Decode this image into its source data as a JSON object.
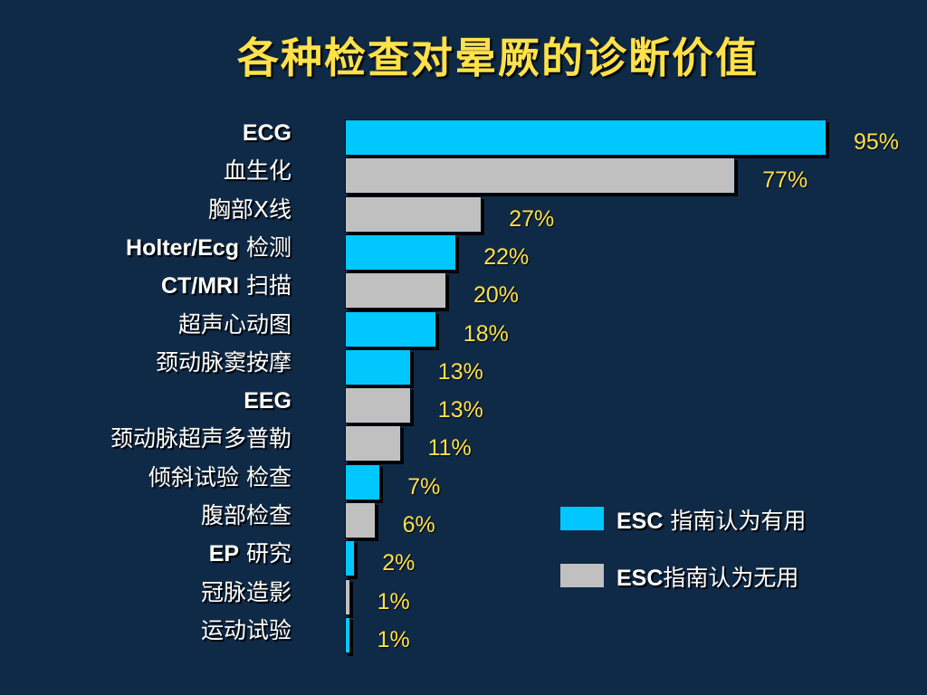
{
  "title": "各种检查对晕厥的诊断价值",
  "colors": {
    "useful": "#00c8ff",
    "not_useful": "#c0c0c0",
    "label": "#ffffff",
    "value": "#ffe14a",
    "background": "#0f2a47"
  },
  "legend": [
    {
      "key": "useful",
      "abbr": "ESC",
      "text": " 指南认为有用"
    },
    {
      "key": "not_useful",
      "abbr": "ESC",
      "text": "指南认为无用"
    }
  ],
  "chart_data": {
    "type": "bar",
    "orientation": "horizontal",
    "title": "各种检查对晕厥的诊断价值",
    "xlim": [
      0,
      100
    ],
    "categories": [
      {
        "bold": "ECG",
        "text": ""
      },
      {
        "bold": "",
        "text": "血生化"
      },
      {
        "bold": "",
        "text": "胸部X线"
      },
      {
        "bold": "Holter/Ecg",
        "text": " 检测"
      },
      {
        "bold": "CT/MRI",
        "text": " 扫描"
      },
      {
        "bold": "",
        "text": "超声心动图"
      },
      {
        "bold": "",
        "text": "颈动脉窦按摩"
      },
      {
        "bold": "EEG",
        "text": ""
      },
      {
        "bold": "",
        "text": "颈动脉超声多普勒"
      },
      {
        "bold": "",
        "text": "倾斜试验 检查"
      },
      {
        "bold": "",
        "text": "腹部检查"
      },
      {
        "bold": "EP",
        "text": " 研究"
      },
      {
        "bold": "",
        "text": "冠脉造影"
      },
      {
        "bold": "",
        "text": "运动试验"
      }
    ],
    "values": [
      95,
      77,
      27,
      22,
      20,
      18,
      13,
      13,
      11,
      7,
      6,
      2,
      1,
      1
    ],
    "value_labels": [
      "95%",
      "77%",
      "27%",
      "22%",
      "20%",
      "18%",
      "13%",
      "13%",
      "11%",
      "7%",
      "6%",
      "2%",
      "1%",
      "1%"
    ],
    "groups": [
      "useful",
      "not_useful",
      "not_useful",
      "useful",
      "not_useful",
      "useful",
      "useful",
      "not_useful",
      "not_useful",
      "useful",
      "not_useful",
      "useful",
      "not_useful",
      "useful"
    ]
  }
}
